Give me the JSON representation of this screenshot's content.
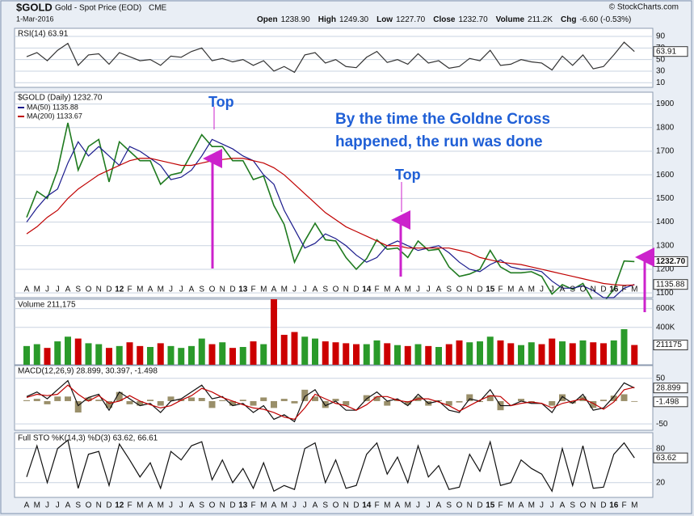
{
  "header": {
    "symbol": "$GOLD",
    "name": "Gold - Spot Price (EOD)",
    "exchange": "CME",
    "date": "1-Mar-2016",
    "source": "© StockCharts.com",
    "quote": [
      {
        "label": "Open",
        "value": "1238.90"
      },
      {
        "label": "High",
        "value": "1249.30"
      },
      {
        "label": "Low",
        "value": "1227.70"
      },
      {
        "label": "Close",
        "value": "1232.70"
      },
      {
        "label": "Volume",
        "value": "211.2K"
      },
      {
        "label": "Chg",
        "value": "-6.60 (-0.53%)"
      }
    ]
  },
  "annotations": [
    "Top",
    "Top",
    "By the time the Goldne Cross",
    "happened, the run was done"
  ],
  "chart_data": [
    {
      "type": "line",
      "title": "RSI(14) 63.91",
      "ylim": [
        2,
        104
      ],
      "yticks": [
        90,
        70,
        50,
        30,
        10
      ],
      "grid": true,
      "series": [
        {
          "color": "#333333",
          "values": [
            55,
            62,
            48,
            66,
            78,
            40,
            58,
            60,
            42,
            62,
            55,
            48,
            50,
            40,
            56,
            54,
            64,
            70,
            48,
            52,
            46,
            50,
            40,
            48,
            30,
            38,
            28,
            58,
            62,
            44,
            50,
            38,
            36,
            54,
            64,
            45,
            50,
            42,
            60,
            44,
            48,
            35,
            38,
            52,
            48,
            66,
            40,
            42,
            50,
            46,
            44,
            32,
            56,
            40,
            58,
            34,
            38,
            58,
            80,
            63.91
          ]
        }
      ],
      "markers": [
        {
          "value": 63.91,
          "label": "63.91"
        }
      ]
    },
    {
      "type": "line",
      "title": "$GOLD (Daily) 1232.70",
      "ylim": [
        1080,
        1950
      ],
      "yticks": [
        1100,
        1200,
        1300,
        1400,
        1500,
        1600,
        1700,
        1800,
        1900
      ],
      "grid": true,
      "categories": [
        "A",
        "M",
        "J",
        "J",
        "A",
        "S",
        "O",
        "N",
        "D",
        "12",
        "F",
        "M",
        "A",
        "M",
        "J",
        "J",
        "A",
        "S",
        "O",
        "N",
        "D",
        "13",
        "F",
        "M",
        "A",
        "M",
        "J",
        "J",
        "A",
        "S",
        "O",
        "N",
        "D",
        "14",
        "F",
        "M",
        "A",
        "M",
        "J",
        "J",
        "A",
        "S",
        "O",
        "N",
        "D",
        "15",
        "F",
        "M",
        "A",
        "M",
        "J",
        "J",
        "A",
        "S",
        "O",
        "N",
        "D",
        "16",
        "F",
        "M"
      ],
      "series": [
        {
          "color": "#1f7a1f",
          "values": [
            1420,
            1530,
            1500,
            1620,
            1820,
            1620,
            1720,
            1750,
            1570,
            1740,
            1700,
            1660,
            1660,
            1560,
            1600,
            1610,
            1690,
            1770,
            1720,
            1720,
            1660,
            1660,
            1580,
            1595,
            1470,
            1390,
            1230,
            1320,
            1395,
            1325,
            1320,
            1250,
            1200,
            1245,
            1325,
            1285,
            1290,
            1250,
            1320,
            1280,
            1285,
            1210,
            1170,
            1180,
            1200,
            1280,
            1210,
            1185,
            1185,
            1190,
            1170,
            1095,
            1135,
            1115,
            1140,
            1065,
            1060,
            1115,
            1235,
            1232.7
          ]
        },
        {
          "name": "MA(50) 1135.88",
          "color": "#1a1a8c",
          "values": [
            1400,
            1460,
            1510,
            1540,
            1650,
            1740,
            1680,
            1720,
            1680,
            1640,
            1720,
            1700,
            1670,
            1640,
            1580,
            1590,
            1620,
            1680,
            1750,
            1730,
            1710,
            1680,
            1660,
            1600,
            1560,
            1450,
            1370,
            1290,
            1310,
            1350,
            1330,
            1300,
            1260,
            1230,
            1250,
            1300,
            1320,
            1300,
            1280,
            1290,
            1300,
            1270,
            1230,
            1200,
            1190,
            1220,
            1240,
            1210,
            1200,
            1200,
            1190,
            1150,
            1120,
            1120,
            1130,
            1110,
            1080,
            1080,
            1120,
            1135.88
          ]
        },
        {
          "name": "MA(200) 1133.67",
          "color": "#c00000",
          "values": [
            1350,
            1380,
            1420,
            1450,
            1500,
            1540,
            1570,
            1600,
            1620,
            1640,
            1660,
            1670,
            1670,
            1660,
            1650,
            1640,
            1640,
            1650,
            1660,
            1665,
            1670,
            1670,
            1660,
            1650,
            1630,
            1600,
            1560,
            1520,
            1480,
            1440,
            1410,
            1380,
            1360,
            1340,
            1320,
            1300,
            1300,
            1290,
            1290,
            1290,
            1290,
            1290,
            1280,
            1270,
            1250,
            1240,
            1230,
            1225,
            1220,
            1210,
            1200,
            1190,
            1180,
            1170,
            1160,
            1150,
            1140,
            1135,
            1132,
            1133.67
          ]
        }
      ],
      "markers": [
        {
          "value": 1232.7,
          "label": "1232.70"
        },
        {
          "value": 1135.88,
          "label": "1135.88"
        }
      ]
    },
    {
      "type": "bar",
      "title": "Volume 211,175",
      "ylim": [
        0,
        700000
      ],
      "yticks": [
        {
          "value": 600000,
          "label": "600K"
        },
        {
          "value": 400000,
          "label": "400K"
        }
      ],
      "grid": true,
      "up_color": "#2a9a2a",
      "down_color": "#cc0000",
      "series": [
        {
          "values": [
            200000,
            220000,
            180000,
            250000,
            300000,
            280000,
            230000,
            220000,
            180000,
            200000,
            240000,
            200000,
            190000,
            230000,
            200000,
            180000,
            200000,
            280000,
            220000,
            240000,
            180000,
            190000,
            250000,
            220000,
            700000,
            320000,
            350000,
            300000,
            280000,
            250000,
            240000,
            230000,
            220000,
            220000,
            260000,
            230000,
            210000,
            200000,
            220000,
            200000,
            190000,
            220000,
            260000,
            240000,
            250000,
            300000,
            260000,
            230000,
            210000,
            240000,
            220000,
            280000,
            250000,
            230000,
            260000,
            240000,
            230000,
            260000,
            380000,
            211175
          ]
        }
      ],
      "markers": [
        {
          "value": 211175,
          "label": "211175"
        }
      ]
    },
    {
      "type": "line",
      "title": "MACD(12,26,9) 28.899, 30.397, -1.498",
      "ylim": [
        -64,
        78
      ],
      "yticks": [
        50,
        -50
      ],
      "grid": true,
      "series": [
        {
          "type": "bar",
          "color": "#9a8f6a",
          "values": [
            2,
            5,
            -7,
            10,
            10,
            -25,
            8,
            3,
            -15,
            20,
            -7,
            -10,
            3,
            -10,
            10,
            3,
            8,
            7,
            -15,
            2,
            -10,
            3,
            -10,
            8,
            -15,
            5,
            -5,
            25,
            10,
            -15,
            5,
            -10,
            0,
            13,
            10,
            -10,
            3,
            -8,
            10,
            -10,
            2,
            -10,
            -3,
            15,
            -2,
            13,
            -20,
            0,
            5,
            -3,
            0,
            -10,
            15,
            -5,
            10,
            -15,
            3,
            12,
            15,
            -1.498
          ]
        },
        {
          "color": "#111111",
          "values": [
            10,
            20,
            5,
            25,
            45,
            -10,
            8,
            15,
            -20,
            20,
            5,
            -10,
            -5,
            -25,
            0,
            5,
            20,
            35,
            5,
            10,
            -10,
            -5,
            -25,
            -10,
            -40,
            -30,
            -45,
            10,
            25,
            -10,
            0,
            -20,
            -20,
            5,
            20,
            0,
            5,
            -10,
            15,
            -5,
            0,
            -20,
            -25,
            5,
            0,
            25,
            -10,
            -10,
            0,
            -5,
            -5,
            -25,
            10,
            -5,
            15,
            -20,
            -15,
            10,
            40,
            28.899
          ]
        },
        {
          "color": "#c00000",
          "values": [
            8,
            15,
            12,
            15,
            35,
            15,
            0,
            12,
            -5,
            0,
            12,
            0,
            -8,
            -15,
            -10,
            2,
            12,
            28,
            20,
            8,
            0,
            -8,
            -15,
            -18,
            -25,
            -35,
            -40,
            -15,
            15,
            5,
            -5,
            -10,
            -20,
            -8,
            10,
            10,
            2,
            -2,
            5,
            5,
            -2,
            -10,
            -22,
            -10,
            2,
            12,
            10,
            -10,
            -5,
            -2,
            -5,
            -15,
            -5,
            0,
            5,
            -5,
            -18,
            -2,
            25,
            30.397
          ]
        }
      ],
      "markers": [
        {
          "value": 28.899,
          "label": "28.899"
        },
        {
          "value": -1.498,
          "label": "-1.498"
        }
      ]
    },
    {
      "type": "line",
      "title": "Full STO %K(14,3) %D(3) 63.62, 66.61",
      "ylim": [
        -6,
        108
      ],
      "yticks": [
        80,
        20
      ],
      "grid": true,
      "series": [
        {
          "color": "#111111",
          "values": [
            30,
            85,
            20,
            80,
            95,
            10,
            70,
            75,
            15,
            88,
            60,
            30,
            55,
            10,
            75,
            60,
            85,
            92,
            25,
            60,
            20,
            45,
            10,
            55,
            5,
            15,
            8,
            80,
            90,
            20,
            60,
            10,
            15,
            70,
            90,
            35,
            65,
            20,
            85,
            30,
            50,
            8,
            12,
            70,
            40,
            92,
            15,
            20,
            60,
            45,
            35,
            5,
            80,
            15,
            85,
            10,
            12,
            70,
            90,
            63.62
          ]
        }
      ],
      "markers": [
        {
          "value": 63.62,
          "label": "63.62"
        }
      ]
    }
  ]
}
